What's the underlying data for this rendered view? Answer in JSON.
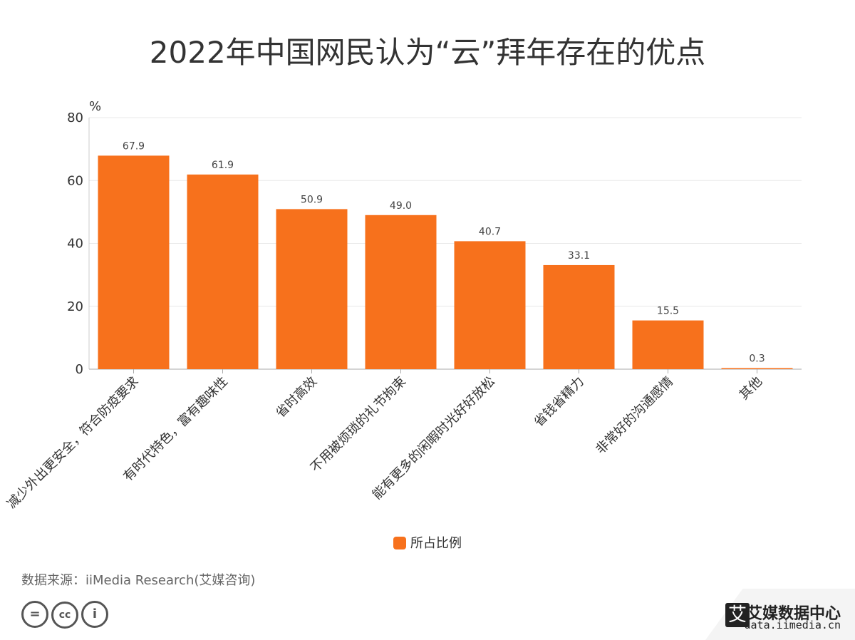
{
  "title": "2022年中国网民认为“云”拜年存在的优点",
  "chart_data": {
    "type": "bar",
    "title": "2022年中国网民认为“云”拜年存在的优点",
    "unit": "%",
    "categories": [
      "减少外出更安全，符合防疫要求",
      "有时代特色，富有趣味性",
      "省时高效",
      "不用被烦琐的礼节拘束",
      "能有更多的闲暇时光好好放松",
      "省钱省精力",
      "非常好的沟通感情",
      "其他"
    ],
    "series": [
      {
        "name": "所占比例",
        "values": [
          67.9,
          61.9,
          50.9,
          49.0,
          40.7,
          33.1,
          15.5,
          0.3
        ]
      }
    ],
    "value_labels": [
      "67.9",
      "61.9",
      "50.9",
      "49.0",
      "40.7",
      "33.1",
      "15.5",
      "0.3"
    ],
    "ylim": [
      0,
      80
    ],
    "yticks": [
      0,
      20,
      40,
      60,
      80
    ],
    "grid": true,
    "legend_position": "bottom",
    "bar_color": "#f7711c"
  },
  "legend": {
    "label": "所占比例"
  },
  "source": "数据来源：iiMedia Research(艾媒咨询)",
  "license_icons": [
    "equals-icon",
    "cc-icon",
    "person-icon"
  ],
  "brand": {
    "logo_char": "艾",
    "name": "艾媒数据中心",
    "url": "data.iimedia.cn"
  }
}
